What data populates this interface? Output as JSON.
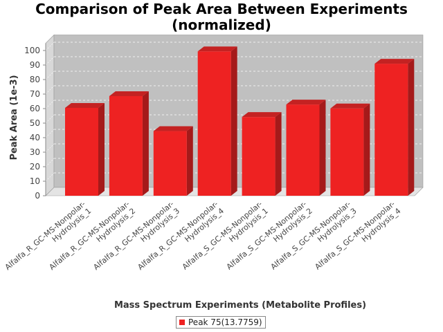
{
  "chart_data": {
    "type": "bar",
    "title_lines": [
      "Comparison of Peak Area Between Experiments",
      "(normalized)"
    ],
    "xlabel": "Mass Spectrum Experiments (Metabolite Profiles)",
    "ylabel": "Peak Area (1e-3)",
    "ylim": [
      0,
      105
    ],
    "yticks": [
      0,
      10,
      20,
      30,
      40,
      50,
      60,
      70,
      80,
      90,
      100
    ],
    "grid": true,
    "legend_position": "bottom-center",
    "categories": [
      [
        "Alfalfa_R_GC-MS-Nonpolar-",
        "Hydrolysis_1"
      ],
      [
        "Alfalfa_R_GC-MS-Nonpolar-",
        "Hydrolysis_2"
      ],
      [
        "Alfalfa_R_GC-MS-Nonpolar-",
        "Hydrolysis_3"
      ],
      [
        "Alfalfa_R_GC-MS-Nonpolar-",
        "Hydrolysis_4"
      ],
      [
        "Alfalfa_S_GC-MS-Nonpolar-",
        "Hydrolysis_1"
      ],
      [
        "Alfalfa_S_GC-MS-Nonpolar-",
        "Hydrolysis_2"
      ],
      [
        "Alfalfa_S_GC-MS-Nonpolar-",
        "Hydrolysis_3"
      ],
      [
        "Alfalfa_S_GC-MS-Nonpolar-",
        "Hydrolysis_4"
      ]
    ],
    "series": [
      {
        "name": "Peak 75(13.7759)",
        "color": "#ee2222",
        "values": [
          60.5,
          68.6,
          44.5,
          99.4,
          54.2,
          62.8,
          60.1,
          90.9
        ]
      }
    ]
  },
  "colors": {
    "plot_background": "#c0c0c0",
    "wall_side": "#d8d8d8",
    "floor": "#e4e4e4",
    "bar_front": "#ee2222",
    "bar_top": "#c42222",
    "bar_side": "#a51a1a"
  }
}
